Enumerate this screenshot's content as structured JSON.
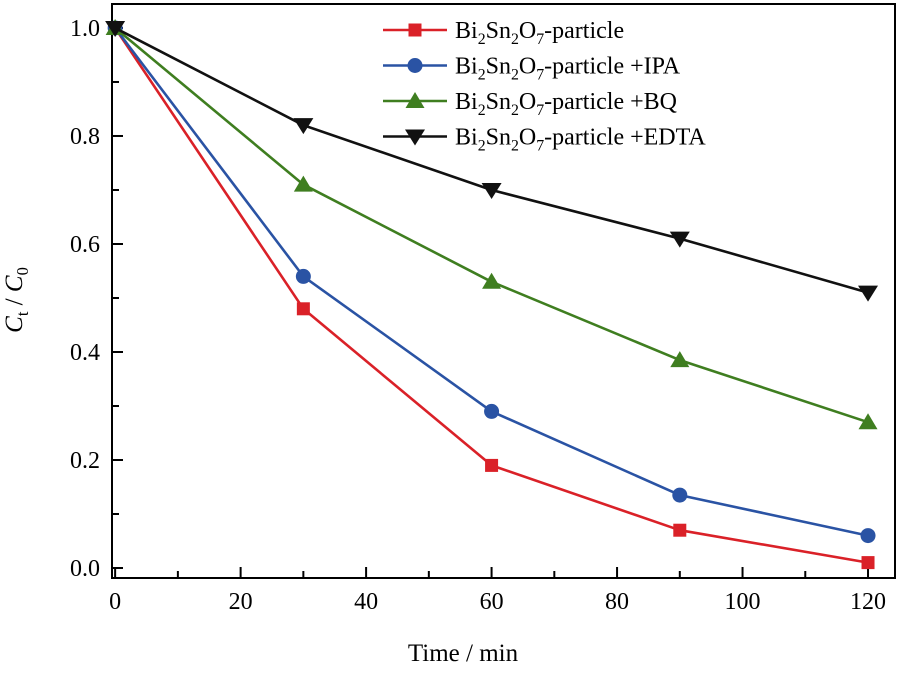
{
  "figure": {
    "background": "#ffffff",
    "frame_color": "#000000",
    "text_color": "#000000"
  },
  "chart_data": {
    "type": "line",
    "title": "",
    "xlabel": "Time / min",
    "ylabel": "*C*_t / *C*_0",
    "x": [
      0,
      30,
      60,
      90,
      120
    ],
    "series": [
      {
        "name": "Bi_2Sn_2O_7-particle",
        "marker": "square",
        "color": "#da2128",
        "values": [
          1.0,
          0.48,
          0.19,
          0.07,
          0.01
        ]
      },
      {
        "name": "Bi_2Sn_2O_7-particle +IPA",
        "marker": "circle",
        "color": "#2a53a4",
        "values": [
          1.0,
          0.54,
          0.29,
          0.135,
          0.06
        ]
      },
      {
        "name": "Bi_2Sn_2O_7-particle +BQ",
        "marker": "triangle-up",
        "color": "#3f7e20",
        "values": [
          1.0,
          0.71,
          0.53,
          0.385,
          0.27
        ]
      },
      {
        "name": "Bi_2Sn_2O_7-particle +EDTA",
        "marker": "triangle-down",
        "color": "#111111",
        "values": [
          1.0,
          0.82,
          0.7,
          0.61,
          0.51
        ]
      }
    ],
    "xticks": [
      0,
      20,
      40,
      60,
      80,
      100,
      120
    ],
    "yticks": [
      0.0,
      0.2,
      0.4,
      0.6,
      0.8,
      1.0
    ],
    "x_minor_step": 10,
    "y_minor_step": 0.1,
    "xlim": [
      -0.5,
      124.3
    ],
    "ylim": [
      -0.0185,
      1.0444
    ],
    "grid": false,
    "legend_position": "top-center"
  }
}
